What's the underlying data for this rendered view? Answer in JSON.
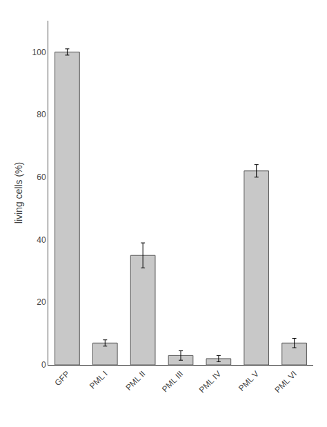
{
  "chart_data": {
    "type": "bar",
    "categories": [
      "GFP",
      "PML I",
      "PML II",
      "PML III",
      "PML IV",
      "PML V",
      "PML VI"
    ],
    "values": [
      100,
      7,
      35,
      3,
      2,
      62,
      7
    ],
    "errors": [
      1,
      1,
      4,
      1.5,
      1,
      2,
      1.5
    ],
    "color": "#c8c8c8",
    "ylabel": "living cells (%)",
    "ylim": [
      0,
      110
    ],
    "yticks": [
      0,
      20,
      40,
      60,
      80,
      100
    ],
    "grid": false
  }
}
